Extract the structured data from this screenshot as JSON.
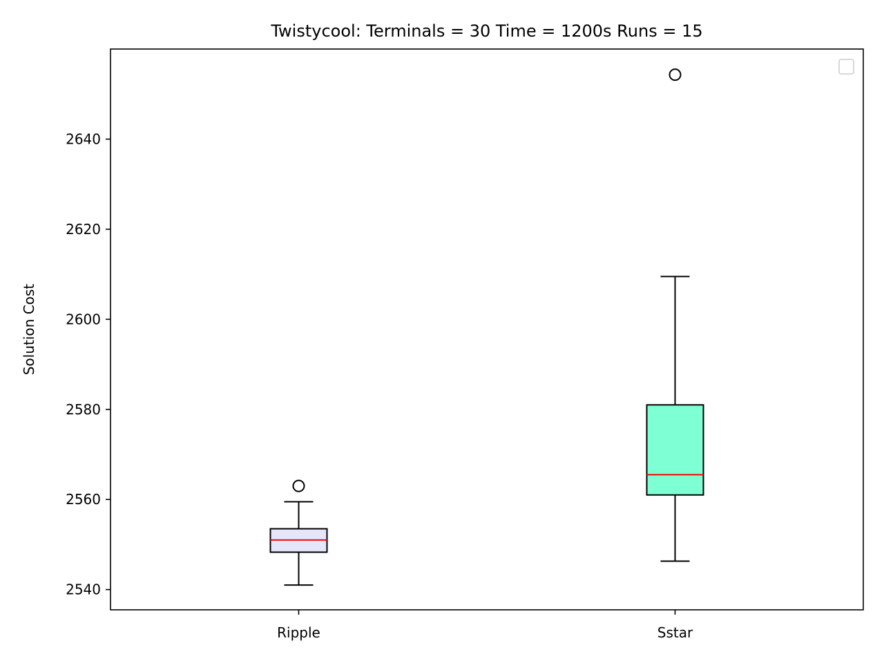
{
  "chart_data": {
    "type": "box",
    "title": "Twistycool:  Terminals = 30  Time = 1200s  Runs = 15",
    "xlabel": "",
    "ylabel": "Solution Cost",
    "ylim": [
      2535.5,
      2660.0
    ],
    "yticks": [
      2540,
      2560,
      2580,
      2600,
      2620,
      2640
    ],
    "grid": false,
    "legend": {
      "placement": "top-right",
      "entries": []
    },
    "median_color": "#ff0000",
    "series": [
      {
        "category": "Ripple",
        "whisker_low": 2541.0,
        "q1": 2548.3,
        "median": 2551.0,
        "q3": 2553.5,
        "whisker_high": 2559.5,
        "outliers": [
          2563.0
        ],
        "fill": "#e6e6fa"
      },
      {
        "category": "Sstar",
        "whisker_low": 2546.3,
        "q1": 2561.0,
        "median": 2565.5,
        "q3": 2581.0,
        "whisker_high": 2609.5,
        "outliers": [
          2654.3
        ],
        "fill": "#7fffd4"
      }
    ]
  }
}
